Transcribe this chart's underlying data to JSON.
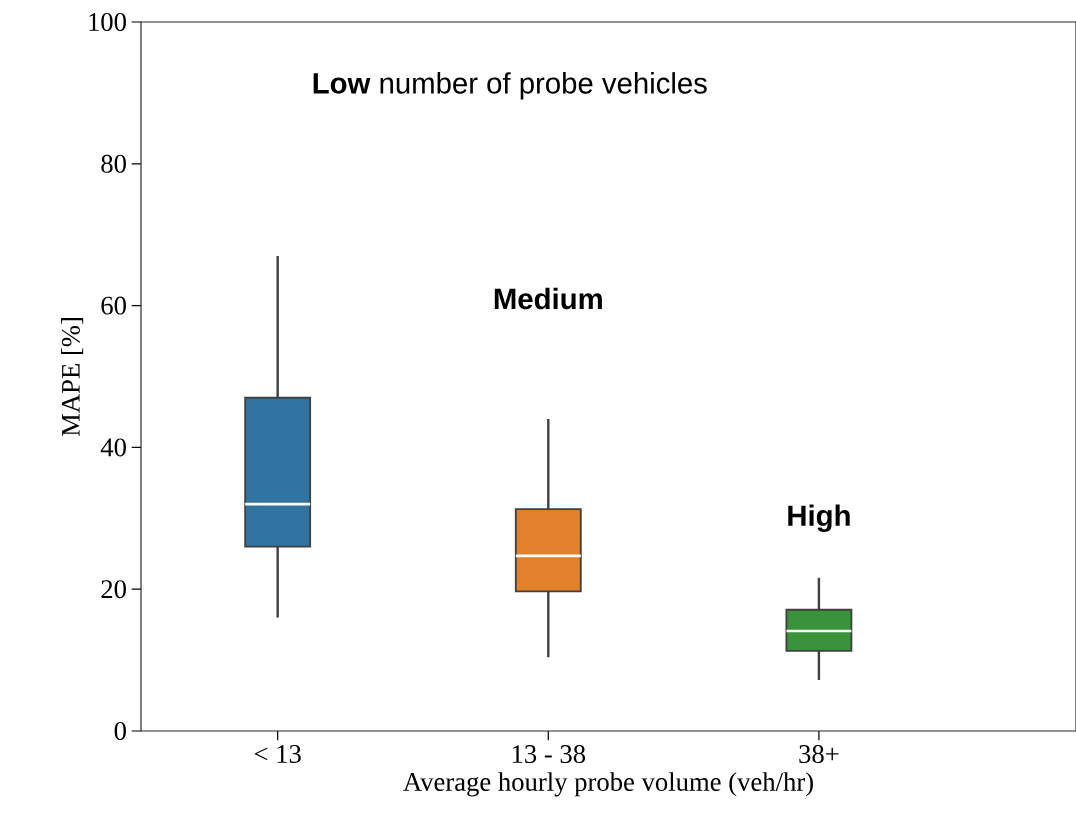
{
  "chart_data": {
    "type": "box",
    "xlabel": "Average hourly probe volume (veh/hr)",
    "ylabel": "MAPE [%]",
    "categories": [
      "< 13",
      "13 - 38",
      "38+"
    ],
    "colors": [
      "#3274a1",
      "#e1812c",
      "#3a923a"
    ],
    "boxes": [
      {
        "low": 16,
        "q1": 26,
        "median": 32,
        "q3": 47,
        "high": 67
      },
      {
        "low": 10.4,
        "q1": 19.7,
        "median": 24.7,
        "q3": 31.3,
        "high": 44
      },
      {
        "low": 7.2,
        "q1": 11.3,
        "median": 14.1,
        "q3": 17.1,
        "high": 21.6
      }
    ],
    "ylim": [
      0,
      100
    ],
    "yticks": [
      0,
      20,
      40,
      60,
      80,
      100
    ],
    "annotations": [
      "**Low** number of probe vehicles",
      "**Medium**",
      "**High**"
    ]
  }
}
